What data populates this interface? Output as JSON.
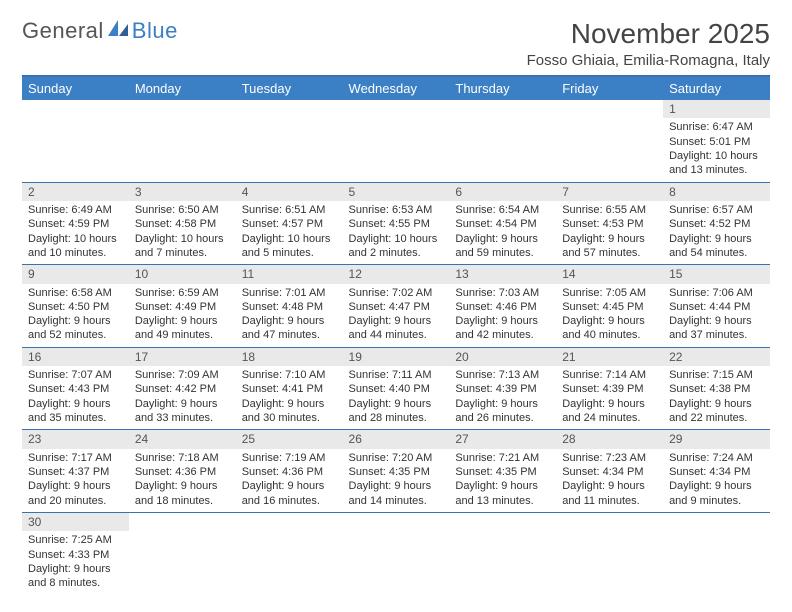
{
  "logo": {
    "part1": "General",
    "part2": "Blue"
  },
  "title": "November 2025",
  "location": "Fosso Ghiaia, Emilia-Romagna, Italy",
  "colors": {
    "header_bg": "#3b7fc4",
    "header_text": "#ffffff",
    "rule": "#3972b3",
    "daynum_bg": "#e9e9e9",
    "text": "#333333"
  },
  "weekdays": [
    "Sunday",
    "Monday",
    "Tuesday",
    "Wednesday",
    "Thursday",
    "Friday",
    "Saturday"
  ],
  "weeks": [
    [
      null,
      null,
      null,
      null,
      null,
      null,
      {
        "n": "1",
        "rise": "Sunrise: 6:47 AM",
        "set": "Sunset: 5:01 PM",
        "day": "Daylight: 10 hours and 13 minutes."
      }
    ],
    [
      {
        "n": "2",
        "rise": "Sunrise: 6:49 AM",
        "set": "Sunset: 4:59 PM",
        "day": "Daylight: 10 hours and 10 minutes."
      },
      {
        "n": "3",
        "rise": "Sunrise: 6:50 AM",
        "set": "Sunset: 4:58 PM",
        "day": "Daylight: 10 hours and 7 minutes."
      },
      {
        "n": "4",
        "rise": "Sunrise: 6:51 AM",
        "set": "Sunset: 4:57 PM",
        "day": "Daylight: 10 hours and 5 minutes."
      },
      {
        "n": "5",
        "rise": "Sunrise: 6:53 AM",
        "set": "Sunset: 4:55 PM",
        "day": "Daylight: 10 hours and 2 minutes."
      },
      {
        "n": "6",
        "rise": "Sunrise: 6:54 AM",
        "set": "Sunset: 4:54 PM",
        "day": "Daylight: 9 hours and 59 minutes."
      },
      {
        "n": "7",
        "rise": "Sunrise: 6:55 AM",
        "set": "Sunset: 4:53 PM",
        "day": "Daylight: 9 hours and 57 minutes."
      },
      {
        "n": "8",
        "rise": "Sunrise: 6:57 AM",
        "set": "Sunset: 4:52 PM",
        "day": "Daylight: 9 hours and 54 minutes."
      }
    ],
    [
      {
        "n": "9",
        "rise": "Sunrise: 6:58 AM",
        "set": "Sunset: 4:50 PM",
        "day": "Daylight: 9 hours and 52 minutes."
      },
      {
        "n": "10",
        "rise": "Sunrise: 6:59 AM",
        "set": "Sunset: 4:49 PM",
        "day": "Daylight: 9 hours and 49 minutes."
      },
      {
        "n": "11",
        "rise": "Sunrise: 7:01 AM",
        "set": "Sunset: 4:48 PM",
        "day": "Daylight: 9 hours and 47 minutes."
      },
      {
        "n": "12",
        "rise": "Sunrise: 7:02 AM",
        "set": "Sunset: 4:47 PM",
        "day": "Daylight: 9 hours and 44 minutes."
      },
      {
        "n": "13",
        "rise": "Sunrise: 7:03 AM",
        "set": "Sunset: 4:46 PM",
        "day": "Daylight: 9 hours and 42 minutes."
      },
      {
        "n": "14",
        "rise": "Sunrise: 7:05 AM",
        "set": "Sunset: 4:45 PM",
        "day": "Daylight: 9 hours and 40 minutes."
      },
      {
        "n": "15",
        "rise": "Sunrise: 7:06 AM",
        "set": "Sunset: 4:44 PM",
        "day": "Daylight: 9 hours and 37 minutes."
      }
    ],
    [
      {
        "n": "16",
        "rise": "Sunrise: 7:07 AM",
        "set": "Sunset: 4:43 PM",
        "day": "Daylight: 9 hours and 35 minutes."
      },
      {
        "n": "17",
        "rise": "Sunrise: 7:09 AM",
        "set": "Sunset: 4:42 PM",
        "day": "Daylight: 9 hours and 33 minutes."
      },
      {
        "n": "18",
        "rise": "Sunrise: 7:10 AM",
        "set": "Sunset: 4:41 PM",
        "day": "Daylight: 9 hours and 30 minutes."
      },
      {
        "n": "19",
        "rise": "Sunrise: 7:11 AM",
        "set": "Sunset: 4:40 PM",
        "day": "Daylight: 9 hours and 28 minutes."
      },
      {
        "n": "20",
        "rise": "Sunrise: 7:13 AM",
        "set": "Sunset: 4:39 PM",
        "day": "Daylight: 9 hours and 26 minutes."
      },
      {
        "n": "21",
        "rise": "Sunrise: 7:14 AM",
        "set": "Sunset: 4:39 PM",
        "day": "Daylight: 9 hours and 24 minutes."
      },
      {
        "n": "22",
        "rise": "Sunrise: 7:15 AM",
        "set": "Sunset: 4:38 PM",
        "day": "Daylight: 9 hours and 22 minutes."
      }
    ],
    [
      {
        "n": "23",
        "rise": "Sunrise: 7:17 AM",
        "set": "Sunset: 4:37 PM",
        "day": "Daylight: 9 hours and 20 minutes."
      },
      {
        "n": "24",
        "rise": "Sunrise: 7:18 AM",
        "set": "Sunset: 4:36 PM",
        "day": "Daylight: 9 hours and 18 minutes."
      },
      {
        "n": "25",
        "rise": "Sunrise: 7:19 AM",
        "set": "Sunset: 4:36 PM",
        "day": "Daylight: 9 hours and 16 minutes."
      },
      {
        "n": "26",
        "rise": "Sunrise: 7:20 AM",
        "set": "Sunset: 4:35 PM",
        "day": "Daylight: 9 hours and 14 minutes."
      },
      {
        "n": "27",
        "rise": "Sunrise: 7:21 AM",
        "set": "Sunset: 4:35 PM",
        "day": "Daylight: 9 hours and 13 minutes."
      },
      {
        "n": "28",
        "rise": "Sunrise: 7:23 AM",
        "set": "Sunset: 4:34 PM",
        "day": "Daylight: 9 hours and 11 minutes."
      },
      {
        "n": "29",
        "rise": "Sunrise: 7:24 AM",
        "set": "Sunset: 4:34 PM",
        "day": "Daylight: 9 hours and 9 minutes."
      }
    ],
    [
      {
        "n": "30",
        "rise": "Sunrise: 7:25 AM",
        "set": "Sunset: 4:33 PM",
        "day": "Daylight: 9 hours and 8 minutes."
      },
      null,
      null,
      null,
      null,
      null,
      null
    ]
  ]
}
